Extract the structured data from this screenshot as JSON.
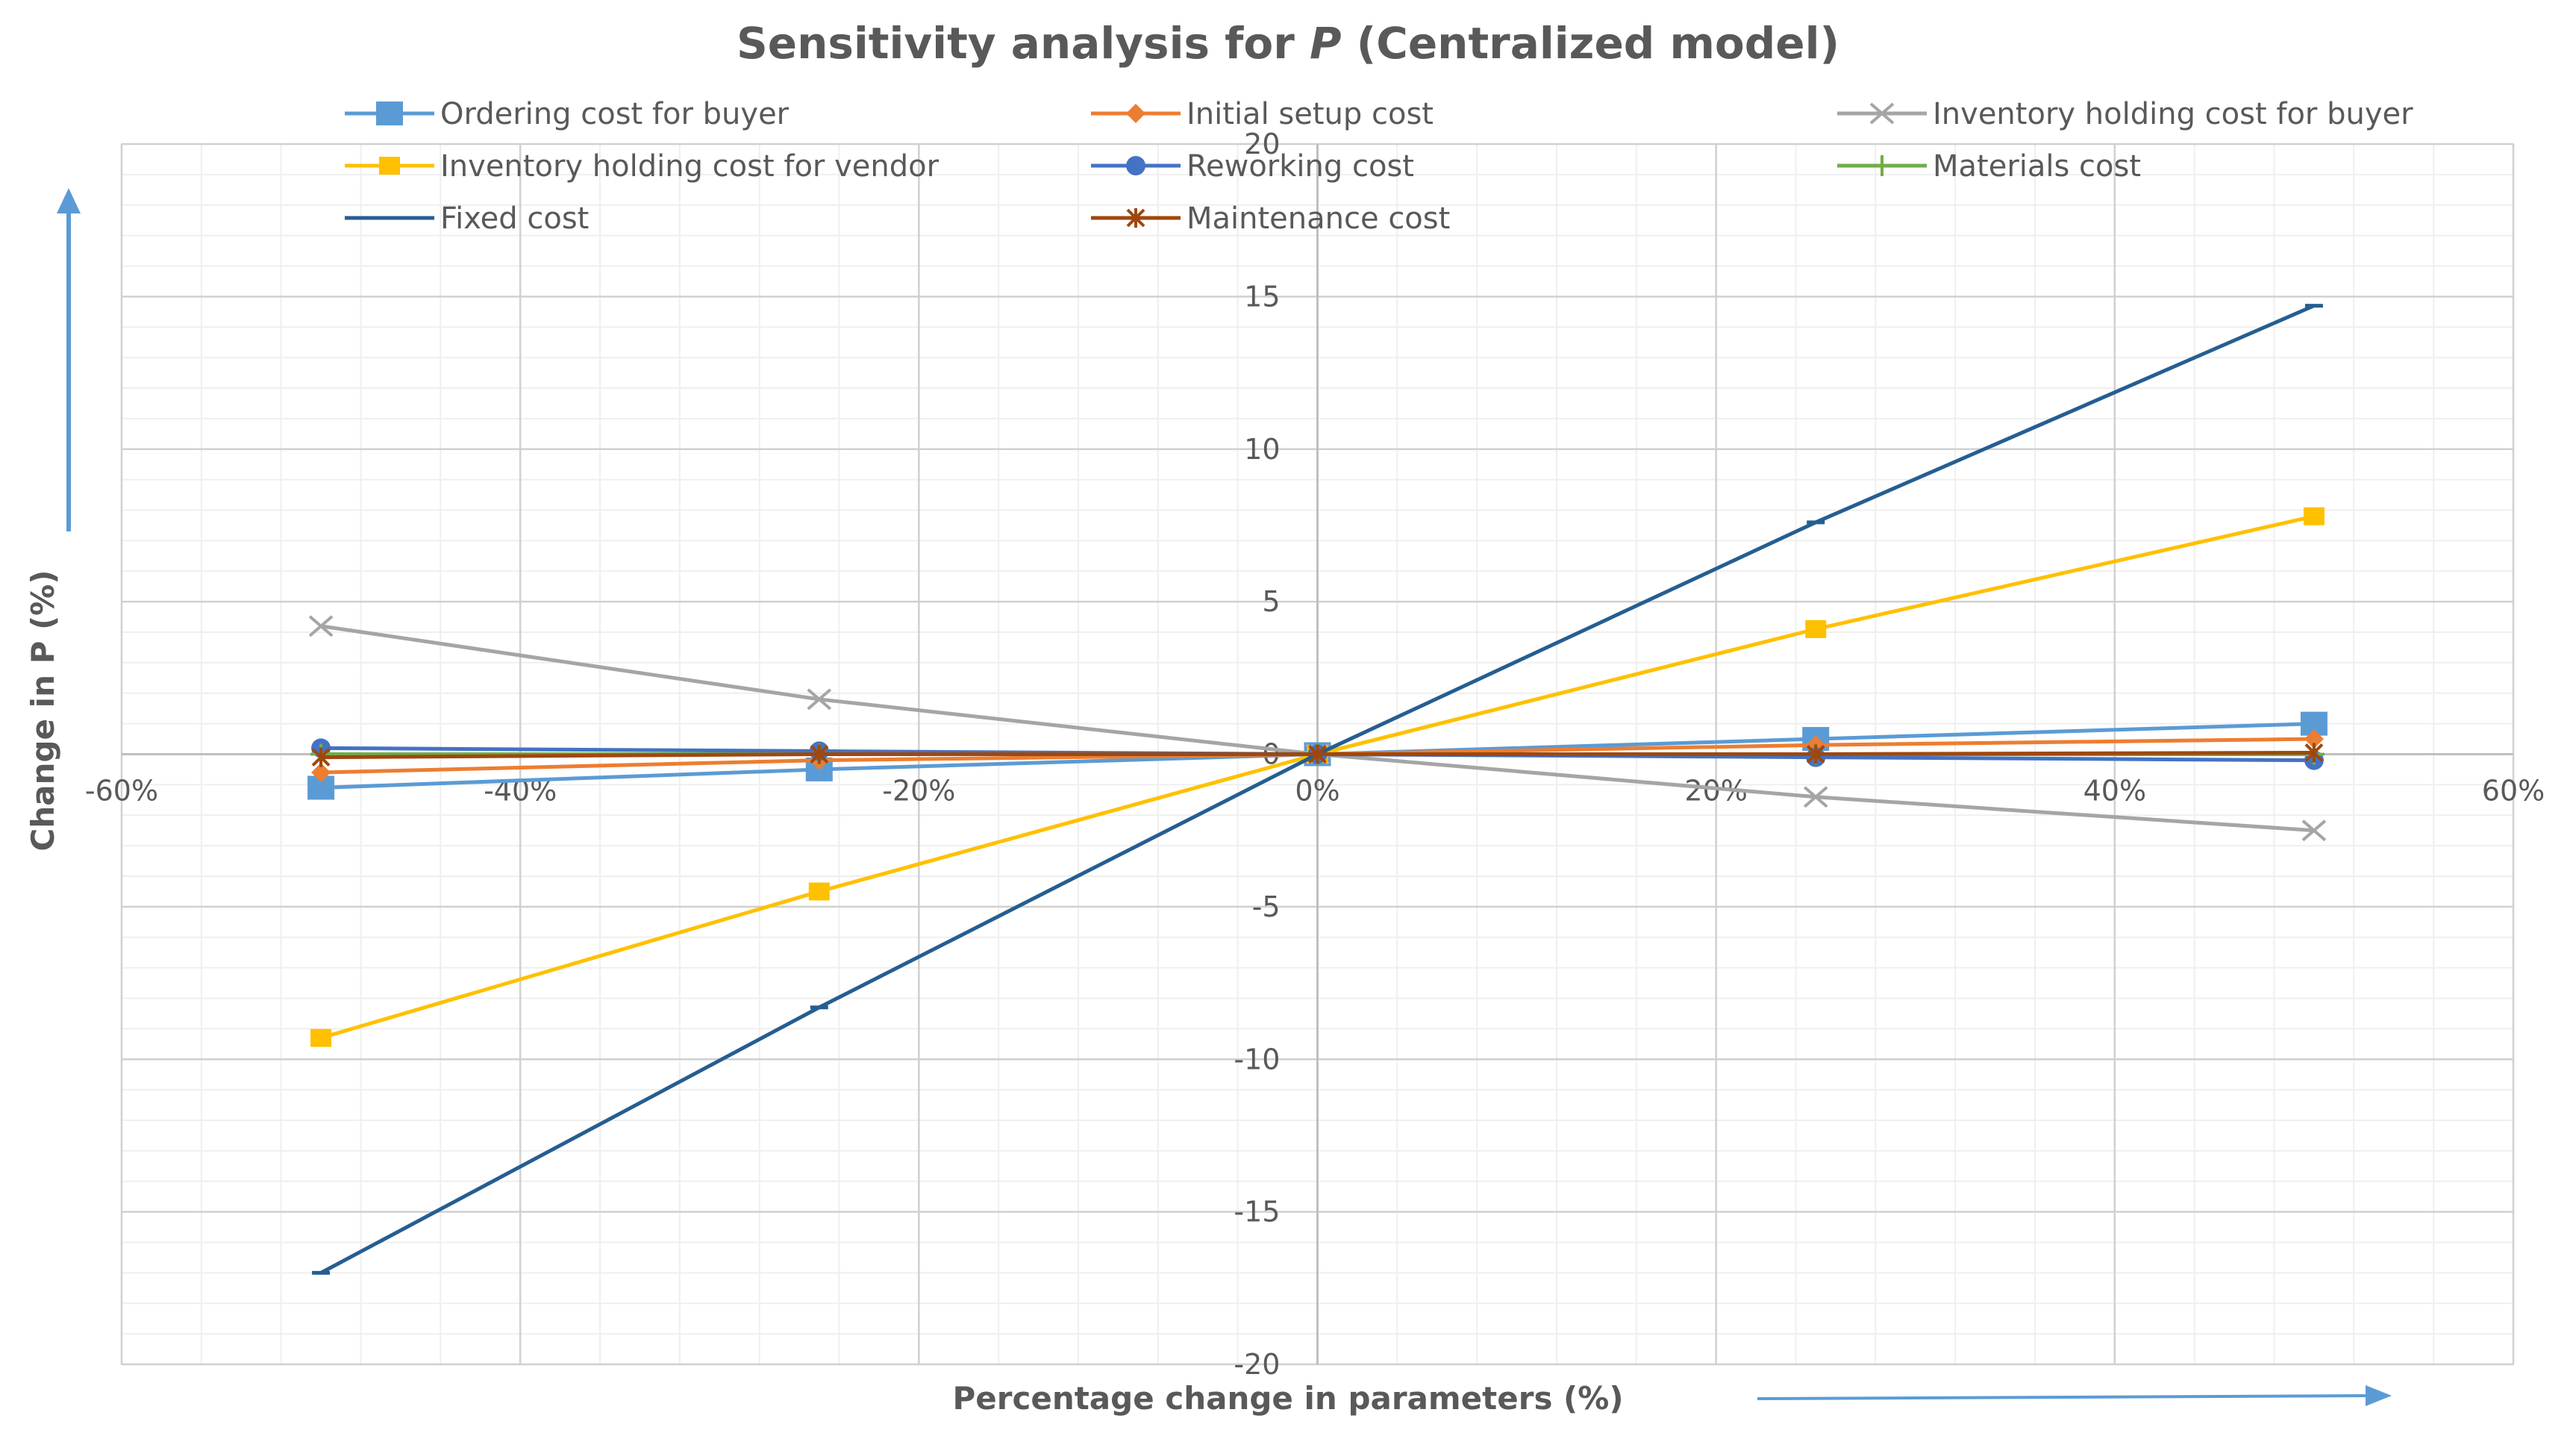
{
  "chart_data": {
    "type": "line",
    "title_prefix": "Sensitivity analysis for ",
    "title_var": "P",
    "title_suffix": " (Centralized model)",
    "xlabel": "Percentage change in parameters (%)",
    "ylabel": "Change in P (%)",
    "xlim": [
      -60,
      60
    ],
    "ylim": [
      -20,
      20
    ],
    "x_ticks": [
      -60,
      -40,
      -20,
      0,
      20,
      40,
      60
    ],
    "x_tick_labels": [
      "-60%",
      "-40%",
      "-20%",
      "0%",
      "20%",
      "40%",
      "60%"
    ],
    "y_ticks": [
      -20,
      -15,
      -10,
      -5,
      0,
      5,
      10,
      15,
      20
    ],
    "y_tick_labels": [
      "-20",
      "-15",
      "-10",
      "-5",
      "0",
      "5",
      "10",
      "15",
      "20"
    ],
    "grid": true,
    "legend_position": "top",
    "x": [
      -50,
      -25,
      0,
      25,
      50
    ],
    "series": [
      {
        "name": "Ordering cost for buyer",
        "color": "#5B9BD5",
        "marker": "square-large",
        "values": [
          -1.1,
          -0.5,
          0,
          0.5,
          1.0
        ]
      },
      {
        "name": "Initial setup cost",
        "color": "#ED7D31",
        "marker": "diamond",
        "values": [
          -0.6,
          -0.2,
          0,
          0.3,
          0.5
        ]
      },
      {
        "name": "Inventory holding cost for buyer",
        "color": "#A5A5A5",
        "marker": "x",
        "values": [
          4.2,
          1.8,
          0,
          -1.4,
          -2.5
        ]
      },
      {
        "name": "Inventory holding cost for vendor",
        "color": "#FFC000",
        "marker": "square",
        "values": [
          -9.3,
          -4.5,
          0,
          4.1,
          7.8
        ]
      },
      {
        "name": "Reworking cost",
        "color": "#4472C4",
        "marker": "circle",
        "values": [
          0.2,
          0.1,
          0,
          -0.1,
          -0.2
        ]
      },
      {
        "name": "Materials cost",
        "color": "#70AD47",
        "marker": "plus",
        "values": [
          0,
          0,
          0,
          0,
          0
        ]
      },
      {
        "name": "Fixed cost",
        "color": "#255E91",
        "marker": "dash",
        "values": [
          -17,
          -8.3,
          0,
          7.6,
          14.7
        ]
      },
      {
        "name": "Maintenance cost",
        "color": "#9E480E",
        "marker": "star",
        "values": [
          -0.1,
          0,
          0,
          0,
          0.05
        ]
      }
    ],
    "arrow_color": "#5B9BD5"
  }
}
